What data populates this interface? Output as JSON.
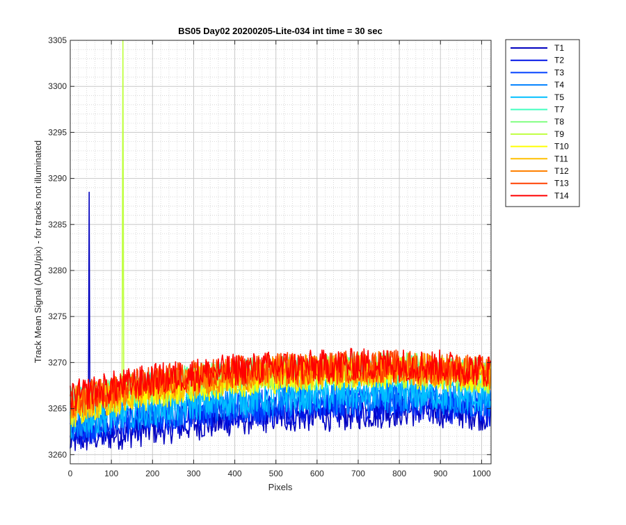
{
  "chart_data": {
    "type": "line",
    "title": "BS05 Day02 20200205-Lite-034 int time = 30 sec",
    "xlabel": "Pixels",
    "ylabel": "Track Mean Signal (ADU/pix) - for tracks not illuminated",
    "xlim": [
      0,
      1023
    ],
    "ylim": [
      3259,
      3305
    ],
    "xticks": [
      0,
      100,
      200,
      300,
      400,
      500,
      600,
      700,
      800,
      900,
      1000
    ],
    "yticks": [
      3260,
      3265,
      3270,
      3275,
      3280,
      3285,
      3290,
      3295,
      3300,
      3305
    ],
    "grid": "major+minor",
    "legend_position": "outside-top-right",
    "series": [
      {
        "name": "T1",
        "color": "#0000bf",
        "x": [
          0,
          50,
          100,
          150,
          200,
          250,
          300,
          350,
          400,
          450,
          500,
          550,
          600,
          650,
          700,
          750,
          800,
          850,
          900,
          950,
          1000,
          1023
        ],
        "values": [
          3261.5,
          3262.0,
          3262.2,
          3262.5,
          3262.8,
          3263.0,
          3263.3,
          3263.5,
          3263.8,
          3264.0,
          3264.2,
          3264.2,
          3264.3,
          3264.3,
          3264.5,
          3264.6,
          3264.8,
          3264.8,
          3264.7,
          3264.6,
          3264.4,
          3264.2
        ],
        "spikes": [
          {
            "x": 47,
            "y": 3288.5
          }
        ]
      },
      {
        "name": "T2",
        "color": "#0014e6",
        "x": [
          0,
          100,
          200,
          300,
          400,
          500,
          600,
          700,
          800,
          900,
          1023
        ],
        "values": [
          3262.2,
          3263.0,
          3263.6,
          3264.1,
          3264.6,
          3265.0,
          3265.1,
          3265.3,
          3265.5,
          3265.2,
          3264.8
        ]
      },
      {
        "name": "T3",
        "color": "#0040ff",
        "x": [
          0,
          100,
          200,
          300,
          400,
          500,
          600,
          700,
          800,
          900,
          1023
        ],
        "values": [
          3262.8,
          3263.6,
          3264.2,
          3264.7,
          3265.2,
          3265.5,
          3265.7,
          3265.9,
          3266.0,
          3265.8,
          3265.4
        ]
      },
      {
        "name": "T4",
        "color": "#0080ff",
        "x": [
          0,
          100,
          200,
          300,
          400,
          500,
          600,
          700,
          800,
          900,
          1023
        ],
        "values": [
          3263.2,
          3264.0,
          3264.6,
          3265.1,
          3265.6,
          3265.9,
          3266.0,
          3266.2,
          3266.3,
          3266.1,
          3265.7
        ]
      },
      {
        "name": "T5",
        "color": "#00bfff",
        "x": [
          0,
          100,
          200,
          300,
          400,
          500,
          600,
          700,
          800,
          900,
          1023
        ],
        "values": [
          3263.6,
          3264.4,
          3265.0,
          3265.5,
          3266.0,
          3266.3,
          3266.4,
          3266.6,
          3266.7,
          3266.5,
          3266.1
        ]
      },
      {
        "name": "T7",
        "color": "#40ffbf",
        "x": [
          0,
          100,
          200,
          300,
          400,
          500,
          600,
          700,
          800,
          900,
          1023
        ],
        "values": [
          3265.5,
          3266.5,
          3267.3,
          3267.9,
          3268.4,
          3268.8,
          3268.9,
          3269.1,
          3269.1,
          3268.9,
          3268.4
        ]
      },
      {
        "name": "T8",
        "color": "#80ff80",
        "x": [
          0,
          100,
          200,
          300,
          400,
          500,
          600,
          700,
          800,
          900,
          1023
        ],
        "values": [
          3265.7,
          3266.7,
          3267.5,
          3268.1,
          3268.6,
          3269.0,
          3269.1,
          3269.3,
          3269.3,
          3269.1,
          3268.6
        ]
      },
      {
        "name": "T9",
        "color": "#bfff40",
        "x": [
          0,
          100,
          200,
          300,
          400,
          500,
          600,
          700,
          800,
          900,
          1023
        ],
        "values": [
          3265.4,
          3266.4,
          3267.2,
          3267.8,
          3268.3,
          3268.7,
          3268.8,
          3269.0,
          3269.0,
          3268.8,
          3268.3
        ],
        "spikes": [
          {
            "x": 128,
            "y": 3305
          }
        ]
      },
      {
        "name": "T10",
        "color": "#ffff00",
        "x": [
          0,
          100,
          200,
          300,
          400,
          500,
          600,
          700,
          800,
          900,
          1023
        ],
        "values": [
          3264.6,
          3265.8,
          3266.7,
          3267.4,
          3268.0,
          3268.4,
          3268.6,
          3268.8,
          3268.9,
          3268.7,
          3268.3
        ]
      },
      {
        "name": "T11",
        "color": "#ffbf00",
        "x": [
          0,
          100,
          200,
          300,
          400,
          500,
          600,
          700,
          800,
          900,
          1023
        ],
        "values": [
          3265.0,
          3266.2,
          3267.1,
          3267.8,
          3268.4,
          3268.8,
          3269.0,
          3269.2,
          3269.3,
          3269.1,
          3268.7
        ]
      },
      {
        "name": "T12",
        "color": "#ff8000",
        "x": [
          0,
          100,
          200,
          300,
          400,
          500,
          600,
          700,
          800,
          900,
          1023
        ],
        "values": [
          3265.6,
          3266.8,
          3267.6,
          3268.2,
          3268.7,
          3269.1,
          3269.2,
          3269.4,
          3269.4,
          3269.2,
          3268.7
        ]
      },
      {
        "name": "T13",
        "color": "#ff4000",
        "x": [
          0,
          100,
          200,
          300,
          400,
          500,
          600,
          700,
          800,
          900,
          1023
        ],
        "values": [
          3266.0,
          3267.1,
          3267.9,
          3268.5,
          3269.0,
          3269.3,
          3269.4,
          3269.6,
          3269.6,
          3269.4,
          3268.9
        ]
      },
      {
        "name": "T14",
        "color": "#ff0000",
        "x": [
          0,
          100,
          200,
          300,
          400,
          500,
          600,
          700,
          800,
          900,
          1023
        ],
        "values": [
          3266.2,
          3267.3,
          3268.1,
          3268.7,
          3269.2,
          3269.5,
          3269.6,
          3269.8,
          3269.8,
          3269.6,
          3269.1
        ]
      }
    ]
  }
}
